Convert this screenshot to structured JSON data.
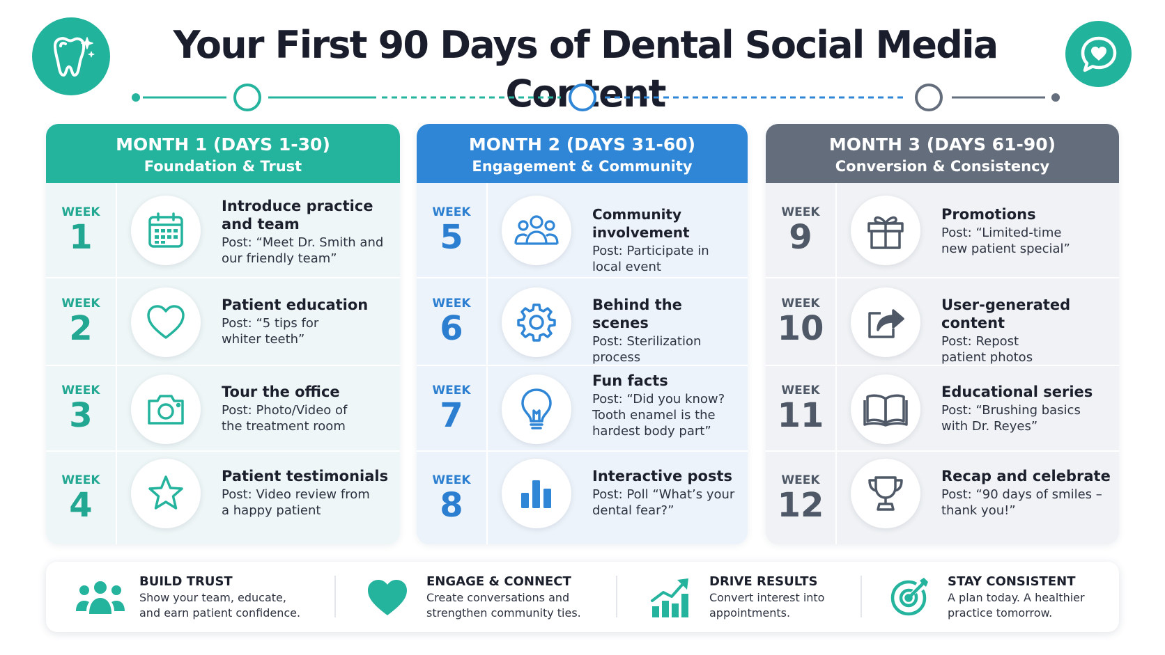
{
  "title": "Your First 90 Days of Dental Social Media Content",
  "icons": {
    "logo_left": "tooth-sparkle-icon",
    "logo_right": "heart-chat-icon"
  },
  "colors": {
    "teal": "#24b39d",
    "blue": "#2f86d6",
    "slate": "#636d7b"
  },
  "months": [
    {
      "title": "MONTH 1 (DAYS 1-30)",
      "subtitle": "Foundation & Trust",
      "weeks": [
        {
          "label": "WEEK",
          "number": "1",
          "icon": "calendar-icon",
          "title_lines": [
            "Introduce practice",
            "and team"
          ],
          "post_lines": [
            "Post: “Meet Dr. Smith and",
            "our friendly team”"
          ]
        },
        {
          "label": "WEEK",
          "number": "2",
          "icon": "heart-icon",
          "title_lines": [
            "Patient education"
          ],
          "post_lines": [
            "Post: “5 tips for",
            "whiter teeth”"
          ]
        },
        {
          "label": "WEEK",
          "number": "3",
          "icon": "camera-icon",
          "title_lines": [
            "Tour the office"
          ],
          "post_lines": [
            "Post: Photo/Video of",
            "the treatment room"
          ]
        },
        {
          "label": "WEEK",
          "number": "4",
          "icon": "star-icon",
          "title_lines": [
            "Patient testimonials"
          ],
          "post_lines": [
            "Post: Video review from",
            "a happy patient"
          ]
        }
      ]
    },
    {
      "title": "MONTH 2 (DAYS 31-60)",
      "subtitle": "Engagement & Community",
      "weeks": [
        {
          "label": "WEEK",
          "number": "5",
          "icon": "people-icon",
          "title_lines": [
            "Community involvement"
          ],
          "post_lines": [
            "Post: Participate in",
            "local event"
          ]
        },
        {
          "label": "WEEK",
          "number": "6",
          "icon": "gear-icon",
          "title_lines": [
            "Behind the scenes"
          ],
          "post_lines": [
            "Post: Sterilization",
            "process"
          ]
        },
        {
          "label": "WEEK",
          "number": "7",
          "icon": "lightbulb-icon",
          "title_lines": [
            "Fun facts"
          ],
          "post_lines": [
            "Post: “Did you know?",
            "Tooth enamel is the",
            "hardest body part”"
          ]
        },
        {
          "label": "WEEK",
          "number": "8",
          "icon": "bar-chart-icon",
          "title_lines": [
            "Interactive posts"
          ],
          "post_lines": [
            "Post: Poll “What’s your",
            "dental fear?”"
          ]
        }
      ]
    },
    {
      "title": "MONTH 3 (DAYS 61-90)",
      "subtitle": "Conversion & Consistency",
      "weeks": [
        {
          "label": "WEEK",
          "number": "9",
          "icon": "gift-icon",
          "title_lines": [
            "Promotions"
          ],
          "post_lines": [
            "Post: “Limited-time",
            "new patient special”"
          ]
        },
        {
          "label": "WEEK",
          "number": "10",
          "icon": "share-icon",
          "title_lines": [
            "User-generated content"
          ],
          "post_lines": [
            "Post: Repost",
            "patient photos"
          ]
        },
        {
          "label": "WEEK",
          "number": "11",
          "icon": "book-icon",
          "title_lines": [
            "Educational series"
          ],
          "post_lines": [
            "Post: “Brushing basics",
            "with Dr. Reyes”"
          ]
        },
        {
          "label": "WEEK",
          "number": "12",
          "icon": "trophy-icon",
          "title_lines": [
            "Recap and celebrate"
          ],
          "post_lines": [
            "Post: “90 days of smiles –",
            "thank you!”"
          ]
        }
      ]
    }
  ],
  "footer": [
    {
      "icon": "team-icon",
      "title": "BUILD TRUST",
      "desc_lines": [
        "Show your team, educate,",
        "and earn patient confidence."
      ]
    },
    {
      "icon": "heart-icon",
      "title": "ENGAGE & CONNECT",
      "desc_lines": [
        "Create conversations and",
        "strengthen community ties."
      ]
    },
    {
      "icon": "growth-chart-icon",
      "title": "DRIVE RESULTS",
      "desc_lines": [
        "Convert interest into",
        "appointments."
      ]
    },
    {
      "icon": "target-icon",
      "title": "STAY CONSISTENT",
      "desc_lines": [
        "A plan today. A healthier",
        "practice tomorrow."
      ]
    }
  ]
}
